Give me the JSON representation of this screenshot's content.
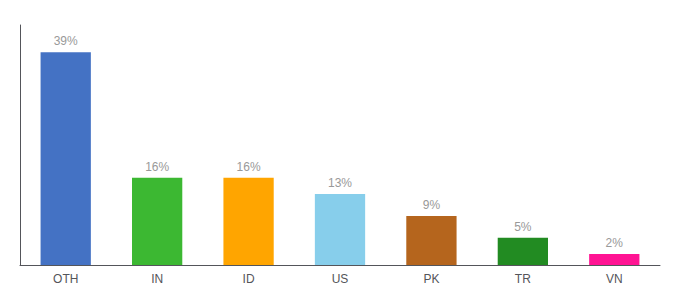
{
  "chart_data": {
    "type": "bar",
    "categories": [
      "OTH",
      "IN",
      "ID",
      "US",
      "PK",
      "TR",
      "VN"
    ],
    "values": [
      39,
      16,
      16,
      13,
      9,
      5,
      2
    ],
    "value_labels": [
      "39%",
      "16%",
      "16%",
      "13%",
      "9%",
      "5%",
      "2%"
    ],
    "data_labels": true,
    "colors": [
      "#4472C4",
      "#3CB832",
      "#FFA500",
      "#87CEEB",
      "#B5651D",
      "#228B22",
      "#FF1493"
    ],
    "ylim": [
      0,
      44
    ],
    "tick_labels": "x",
    "grid": false
  }
}
